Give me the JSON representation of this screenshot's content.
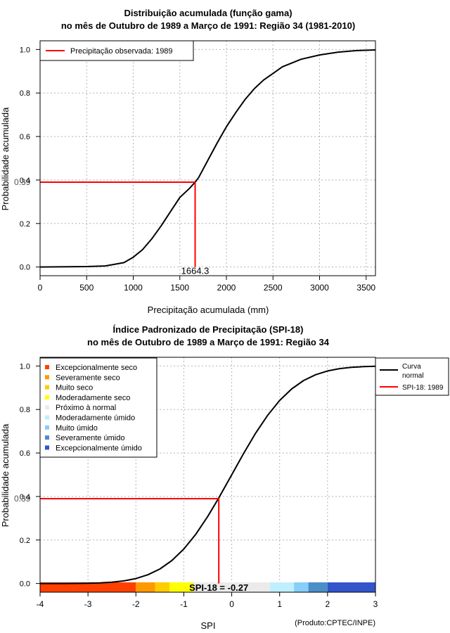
{
  "chart_data": [
    {
      "type": "line",
      "title_line1": "Distribuição acumulada (função gama)",
      "title_line2": "no mês de Outubro de 1989 a Março de 1991: Região 34 (1981-2010)",
      "xlabel": "Precipitação acumulada (mm)",
      "ylabel": "Probabilidade acumulada",
      "xlim": [
        0,
        3600
      ],
      "ylim": [
        -0.04,
        1.04
      ],
      "x_ticks": [
        0,
        500,
        1000,
        1500,
        2000,
        2500,
        3000,
        3500
      ],
      "x_tick_labels": [
        "0",
        "500",
        "1000",
        "1500",
        "2000",
        "2500",
        "3000",
        "3500"
      ],
      "y_ticks": [
        0.0,
        0.2,
        0.4,
        0.6,
        0.8,
        1.0
      ],
      "y_tick_labels": [
        "0.0",
        "0.2",
        "0.4",
        "0.6",
        "0.8",
        "1.0"
      ],
      "grid": true,
      "curve": {
        "x": [
          0,
          500,
          700,
          900,
          1000,
          1100,
          1200,
          1300,
          1400,
          1500,
          1600,
          1664.3,
          1700,
          1800,
          1900,
          2000,
          2100,
          2200,
          2300,
          2400,
          2500,
          2600,
          2800,
          3000,
          3200,
          3400,
          3600
        ],
        "y": [
          0.0,
          0.002,
          0.005,
          0.02,
          0.045,
          0.08,
          0.13,
          0.19,
          0.255,
          0.32,
          0.36,
          0.39,
          0.41,
          0.49,
          0.57,
          0.645,
          0.71,
          0.77,
          0.82,
          0.86,
          0.89,
          0.92,
          0.955,
          0.975,
          0.988,
          0.995,
          0.998
        ]
      },
      "observed": {
        "x": 1664.3,
        "y": 0.39,
        "x_label": "1664.3",
        "y_label": "0.39"
      },
      "legend": {
        "position": "top-left",
        "entries": [
          {
            "label": "Precipitação observada: 1989",
            "color": "#ff0000"
          }
        ]
      }
    },
    {
      "type": "line",
      "title_line1": "Índice Padronizado de Precipitação (SPI-18)",
      "title_line2": "no mês de Outubro de 1989 a Março de 1991: Região 34",
      "xlabel": "SPI",
      "ylabel": "Probabilidade acumulada",
      "xlim": [
        -4,
        3
      ],
      "ylim": [
        -0.04,
        1.04
      ],
      "x_ticks": [
        -4,
        -3,
        -2,
        -1,
        0,
        1,
        2,
        3
      ],
      "x_tick_labels": [
        "-4",
        "-3",
        "-2",
        "-1",
        "0",
        "1",
        "2",
        "3"
      ],
      "y_ticks": [
        0.0,
        0.2,
        0.4,
        0.6,
        0.8,
        1.0
      ],
      "y_tick_labels": [
        "0.0",
        "0.2",
        "0.4",
        "0.6",
        "0.8",
        "1.0"
      ],
      "grid": true,
      "curve": {
        "x": [
          -4,
          -3.5,
          -3,
          -2.75,
          -2.5,
          -2.25,
          -2,
          -1.75,
          -1.5,
          -1.25,
          -1,
          -0.75,
          -0.5,
          -0.27,
          -0.25,
          0,
          0.25,
          0.5,
          0.75,
          1,
          1.25,
          1.5,
          1.75,
          2,
          2.25,
          2.5,
          2.75,
          3
        ],
        "y": [
          0.0,
          0.0002,
          0.0013,
          0.003,
          0.0062,
          0.0122,
          0.0228,
          0.0401,
          0.0668,
          0.1056,
          0.1587,
          0.2266,
          0.3085,
          0.3936,
          0.4013,
          0.5,
          0.5987,
          0.6915,
          0.7734,
          0.8413,
          0.8944,
          0.9332,
          0.9599,
          0.9772,
          0.9878,
          0.9938,
          0.997,
          0.9987
        ]
      },
      "observed": {
        "x": -0.27,
        "y": 0.39,
        "y_label": "0.39",
        "annotation": "SPI-18 = -0.27"
      },
      "categories": [
        {
          "label": "Excepcionalmente seco",
          "from": -4.0,
          "to": -2.0,
          "color": "#ff4000"
        },
        {
          "label": "Severamente seco",
          "from": -2.0,
          "to": -1.6,
          "color": "#ff9900"
        },
        {
          "label": "Muito seco",
          "from": -1.6,
          "to": -1.3,
          "color": "#ffcc00"
        },
        {
          "label": "Moderadamente seco",
          "from": -1.3,
          "to": -0.8,
          "color": "#ffff00"
        },
        {
          "label": "Próximo à normal",
          "from": -0.8,
          "to": 0.8,
          "color": "#ebebeb"
        },
        {
          "label": "Moderadamente úmido",
          "from": 0.8,
          "to": 1.3,
          "color": "#bfefff"
        },
        {
          "label": "Muito úmido",
          "from": 1.3,
          "to": 1.6,
          "color": "#87cefa"
        },
        {
          "label": "Severamente úmido",
          "from": 1.6,
          "to": 2.0,
          "color": "#4a8fc8"
        },
        {
          "label": "Excepcionalmente úmido",
          "from": 2.0,
          "to": 3.0,
          "color": "#3355cc"
        }
      ],
      "legend": {
        "position": "top-left"
      },
      "legend2": {
        "position": "outside-top-right",
        "entries": [
          {
            "label": "Curva normal",
            "label_line1": "Curva",
            "label_line2": "normal",
            "color": "#000000"
          },
          {
            "label": "SPI-18: 1989",
            "color": "#ff0000"
          }
        ]
      },
      "credit": "(Produto:CPTEC/INPE)"
    }
  ]
}
